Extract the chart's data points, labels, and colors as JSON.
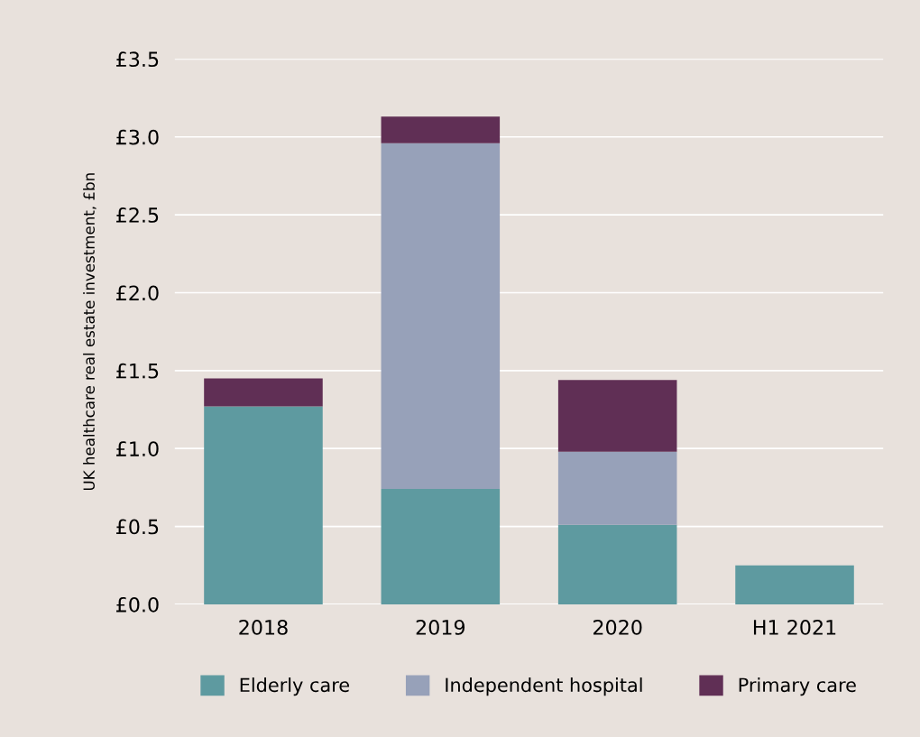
{
  "chart_data": {
    "type": "bar",
    "stacked": true,
    "ylabel": "UK healthcare real estate investment, £bn",
    "categories": [
      "2018",
      "2019",
      "2020",
      "H1 2021"
    ],
    "series": [
      {
        "name": "Elderly care",
        "color": "#5e9aa0",
        "values": [
          1.27,
          0.74,
          0.51,
          0.25
        ]
      },
      {
        "name": "Independent hospital",
        "color": "#97a1b9",
        "values": [
          0,
          2.22,
          0.47,
          0
        ]
      },
      {
        "name": "Primary care",
        "color": "#602f55",
        "values": [
          0.18,
          0.17,
          0.46,
          0
        ]
      }
    ],
    "ylim": [
      0,
      3.5
    ],
    "yticks": [
      {
        "value": 0,
        "label": "£0.0"
      },
      {
        "value": 0.5,
        "label": "£0.5"
      },
      {
        "value": 1,
        "label": "£1.0"
      },
      {
        "value": 1.5,
        "label": "£1.5"
      },
      {
        "value": 2,
        "label": "£2.0"
      },
      {
        "value": 2.5,
        "label": "£2.5"
      },
      {
        "value": 3,
        "label": "£3.0"
      },
      {
        "value": 3.5,
        "label": "£3.5"
      }
    ],
    "grid": "y",
    "legend": "bottom"
  }
}
